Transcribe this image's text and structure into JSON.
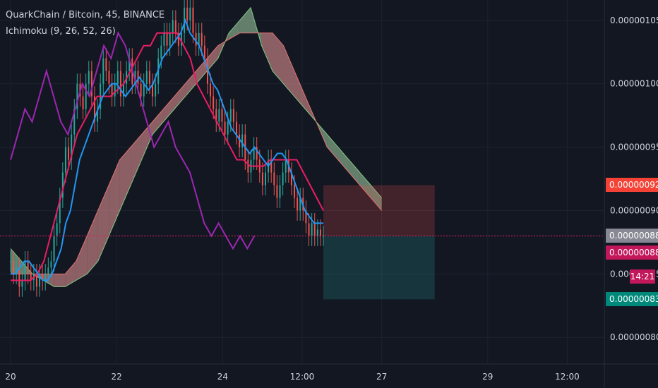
{
  "legend": {
    "symbol_line": "QuarkChain / Bitcoin, 45, BINANCE",
    "indicator_line": "Ichimoku (9, 26, 52, 26)"
  },
  "colors": {
    "background": "#131722",
    "grid": "#1e2230",
    "axis_text": "#d1d4dc",
    "candle_up": "#26a69a",
    "candle_down": "#ef5350",
    "conversion_line": "#2196f3",
    "base_line": "#e91e63",
    "lagging_span": "#9c27b0",
    "cloud_bullish": "#a5d6a7",
    "cloud_bearish": "#ef9a9a",
    "target_zone": "#26a69a",
    "stop_zone": "#ef5350",
    "tag_red": "#f44336",
    "tag_gray": "#868993",
    "tag_pink": "#c2185b",
    "tag_teal": "#00897b"
  },
  "price_tags": {
    "stop": "0.00000092",
    "entry": "0.00000088",
    "last": "0.00000088",
    "countdown": "14:21",
    "target": "0.00000083"
  },
  "chart_data": {
    "type": "candlestick",
    "title": "QuarkChain / Bitcoin, 45, BINANCE",
    "indicator": "Ichimoku (9, 26, 52, 26)",
    "x_tick_labels": [
      "20",
      "22",
      "24",
      "12:00",
      "27",
      "29",
      "12:00"
    ],
    "x_tick_index": [
      0,
      40,
      80,
      110,
      140,
      180,
      210
    ],
    "y_tick_labels": [
      "0.00000105",
      "0.00000100",
      "0.00000095",
      "0.00000090",
      "0.00000085",
      "0.00000080"
    ],
    "y_tick_values": [
      105,
      100,
      95,
      90,
      85,
      80
    ],
    "y_unit_note": "1e-8",
    "ylim": [
      77.9,
      106.6
    ],
    "xlim": [
      -4,
      224
    ],
    "grid": true,
    "candles_close": [
      86.0,
      85.0,
      85.5,
      84.0,
      84.5,
      86.0,
      85.0,
      84.5,
      85.0,
      84.0,
      85.0,
      84.5,
      85.0,
      85.5,
      86.0,
      88.0,
      89.0,
      91.0,
      93.0,
      95.0,
      94.0,
      96.0,
      98.0,
      100.0,
      99.0,
      98.0,
      100.0,
      101.0,
      99.0,
      97.0,
      98.0,
      100.0,
      102.0,
      101.0,
      100.0,
      99.0,
      100.0,
      101.0,
      99.0,
      100.0,
      101.0,
      102.0,
      100.0,
      101.0,
      100.0,
      99.0,
      100.0,
      101.0,
      100.0,
      99.0,
      100.0,
      102.0,
      103.0,
      104.0,
      103.0,
      104.0,
      105.0,
      104.0,
      103.0,
      104.0,
      106.0,
      105.0,
      106.0,
      104.0,
      103.0,
      104.0,
      103.0,
      102.0,
      100.0,
      99.0,
      98.0,
      97.0,
      98.0,
      97.0,
      96.0,
      97.0,
      98.0,
      97.0,
      96.0,
      95.0,
      96.0,
      94.0,
      93.0,
      94.0,
      95.0,
      94.0,
      93.0,
      92.0,
      93.0,
      94.0,
      93.0,
      92.0,
      91.0,
      92.0,
      93.0,
      94.0,
      93.0,
      92.0,
      91.0,
      90.0,
      91.0,
      90.0,
      89.0,
      88.0,
      89.0,
      88.0,
      88.5,
      88.0,
      88.0
    ],
    "conversion_line": [
      85.0,
      85.0,
      85.5,
      86.0,
      86.0,
      85.5,
      85.0,
      84.5,
      84.5,
      85.0,
      86.0,
      87.0,
      89.0,
      90.0,
      92.0,
      94.0,
      95.0,
      96.0,
      97.0,
      98.0,
      99.0,
      99.5,
      100.0,
      100.0,
      99.5,
      99.0,
      99.5,
      100.0,
      100.5,
      100.0,
      99.5,
      100.0,
      101.0,
      102.0,
      102.5,
      103.0,
      103.5,
      104.0,
      105.0,
      104.0,
      103.5,
      103.0,
      102.0,
      101.0,
      100.0,
      99.5,
      98.5,
      97.5,
      96.5,
      96.0,
      95.5,
      95.0,
      94.5,
      95.0,
      94.5,
      94.0,
      93.5,
      94.0,
      94.5,
      94.5,
      94.0,
      93.0,
      92.0,
      91.0,
      90.0,
      89.5,
      89.0,
      89.0,
      89.0
    ],
    "conversion_x_start": 0,
    "base_line": [
      84.5,
      84.5,
      84.5,
      84.5,
      85.0,
      86.0,
      88.0,
      90.0,
      92.0,
      94.0,
      96.0,
      97.0,
      98.0,
      99.0,
      99.0,
      99.0,
      99.5,
      100.0,
      101.0,
      102.0,
      103.0,
      103.0,
      104.0,
      104.0,
      104.0,
      104.0,
      103.0,
      102.0,
      100.0,
      99.0,
      98.0,
      97.0,
      96.0,
      95.0,
      94.0,
      94.0,
      93.5,
      93.5,
      93.5,
      94.0,
      94.0,
      94.0,
      94.0,
      94.0,
      93.0,
      92.0,
      91.0,
      90.0
    ],
    "base_x_start": 0,
    "lagging_span": [
      94.0,
      96.0,
      98.0,
      97.0,
      99.0,
      101.0,
      99.0,
      97.0,
      96.0,
      98.0,
      100.0,
      99.0,
      101.0,
      103.0,
      102.0,
      104.0,
      103.0,
      101.0,
      99.0,
      97.0,
      95.0,
      96.0,
      97.0,
      95.0,
      94.0,
      93.0,
      91.0,
      89.0,
      88.0,
      89.0,
      88.0,
      87.0,
      88.0,
      87.0,
      88.0
    ],
    "lagging_x_start": 0,
    "cloud_x_start": 0,
    "senkou_a": [
      87.0,
      86.0,
      85.0,
      84.5,
      84.0,
      84.0,
      84.5,
      85.0,
      86.0,
      88.0,
      90.0,
      92.0,
      94.0,
      96.0,
      97.0,
      98.0,
      99.0,
      100.0,
      101.0,
      102.0,
      104.0,
      105.0,
      106.0,
      103.0,
      101.0,
      100.0,
      99.0,
      98.0,
      97.0,
      96.0,
      95.0,
      94.0,
      93.0,
      92.0,
      91.0
    ],
    "senkou_b": [
      85.0,
      85.0,
      85.0,
      85.0,
      85.0,
      85.0,
      86.0,
      88.0,
      90.0,
      92.0,
      94.0,
      95.0,
      96.0,
      97.0,
      98.0,
      99.0,
      100.0,
      101.0,
      102.0,
      103.0,
      103.5,
      104.0,
      104.0,
      104.0,
      104.0,
      103.0,
      101.0,
      99.0,
      97.0,
      95.0,
      94.0,
      93.0,
      92.0,
      91.0,
      90.0
    ],
    "position": {
      "stop": 9.2e-07,
      "entry": 8.8e-07,
      "target": 8.3e-07,
      "x_start_index": 118,
      "x_end_index": 160
    }
  }
}
